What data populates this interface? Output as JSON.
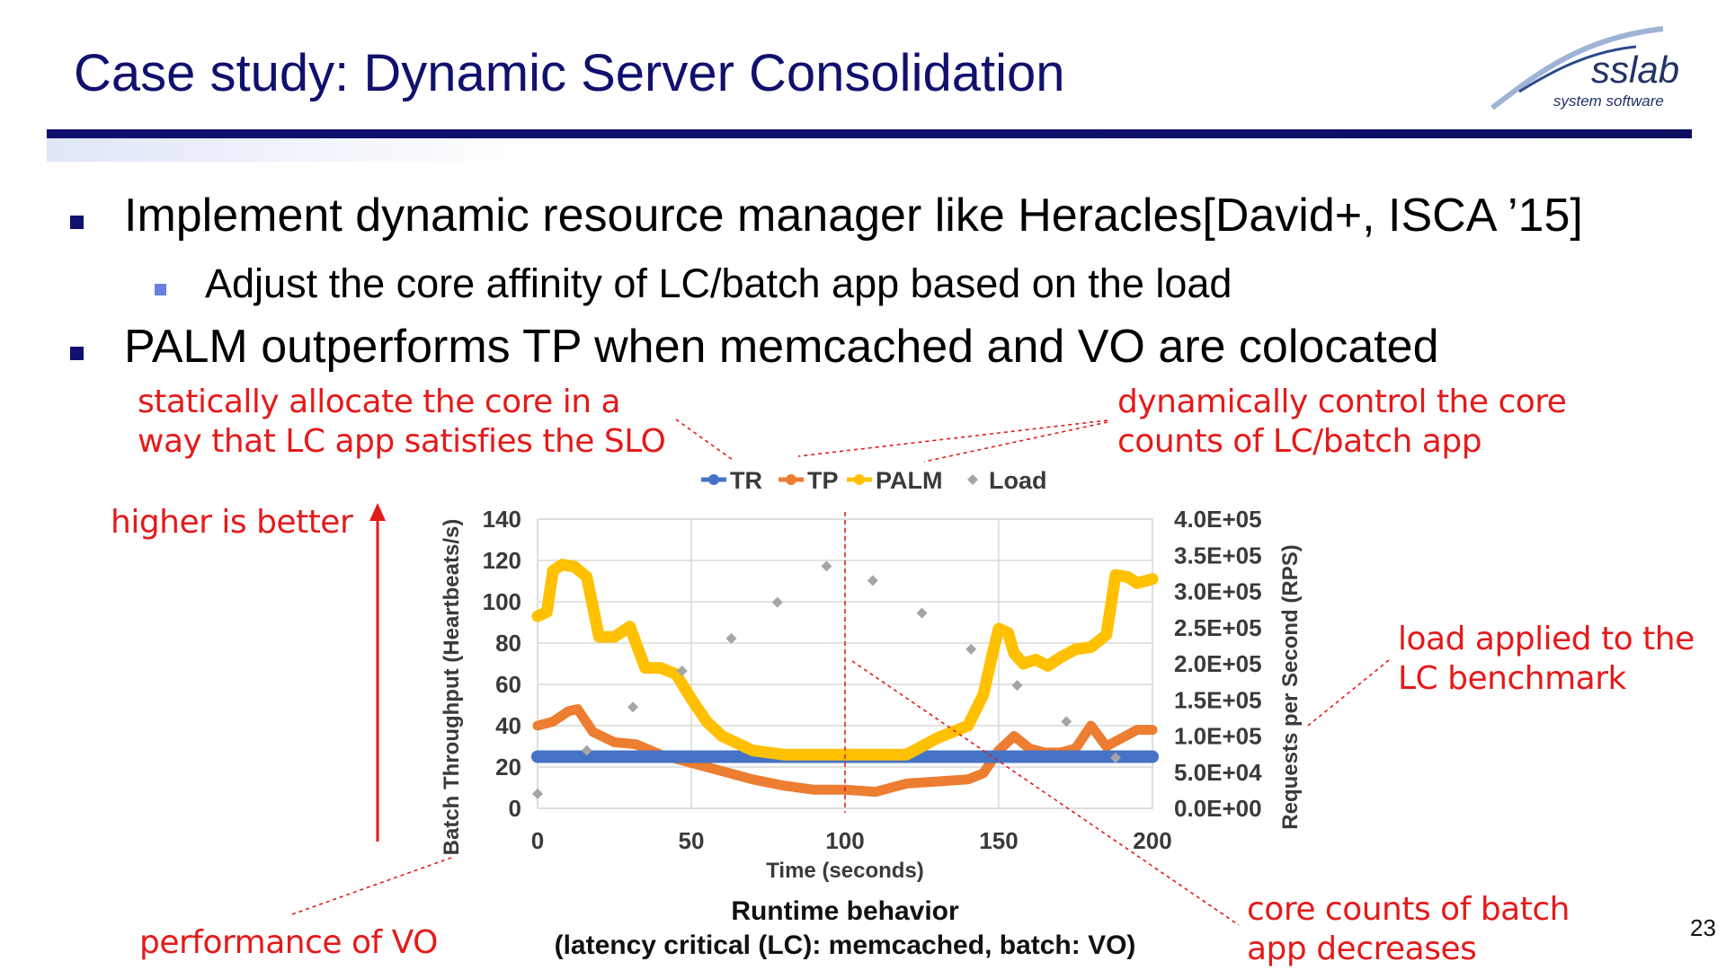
{
  "slide": {
    "title": "Case study: Dynamic Server Consolidation",
    "page_number": "23",
    "logo": {
      "name": "sslab",
      "subtitle": "system software"
    }
  },
  "bullets": [
    {
      "text": "Implement dynamic resource manager like Heracles[David+, ISCA ’15]"
    },
    {
      "text": "Adjust the core affinity of LC/batch app based on the load"
    },
    {
      "text": "PALM outperforms TP when memcached and VO are colocated"
    }
  ],
  "annotations": {
    "static_alloc": [
      "statically allocate the core in a",
      "way that LC app satisfies the SLO"
    ],
    "dynamic_control": [
      "dynamically control the core",
      "counts of LC/batch app"
    ],
    "higher_better": "higher is better",
    "load_applied": [
      "load applied to the",
      "LC benchmark"
    ],
    "perf_vo": "performance of VO",
    "core_decrease": [
      "core counts of batch",
      "app decreases"
    ]
  },
  "caption": {
    "line1": "Runtime behavior",
    "line2": "(latency critical (LC): memcached, batch: VO)"
  },
  "colors": {
    "title": "#10106e",
    "annotation": "#e41a1a",
    "TR": "#4472c4",
    "TP": "#ed7d31",
    "PALM": "#ffc000",
    "Load": "#a5a5a5"
  },
  "chart_data": {
    "type": "line",
    "xlabel": "Time (seconds)",
    "ylabel": "Batch Throughput (Heartbeats/s)",
    "y2label": "Requests per Second (RPS)",
    "xlim": [
      0,
      200
    ],
    "ylim": [
      0,
      140
    ],
    "y2lim": [
      0,
      400000
    ],
    "xticks": [
      "0",
      "50",
      "100",
      "150",
      "200"
    ],
    "yticks": [
      "0",
      "20",
      "40",
      "60",
      "80",
      "100",
      "120",
      "140"
    ],
    "y2ticks": [
      "0.0E+00",
      "5.0E+04",
      "1.0E+05",
      "1.5E+05",
      "2.0E+05",
      "2.5E+05",
      "3.0E+05",
      "3.5E+05",
      "4.0E+05"
    ],
    "legend_position": "top",
    "grid": true,
    "series": [
      {
        "name": "TR",
        "axis": "left",
        "x": [
          0,
          20,
          40,
          60,
          80,
          100,
          120,
          140,
          160,
          180,
          200
        ],
        "y": [
          25,
          25,
          25,
          25,
          25,
          25,
          25,
          25,
          25,
          25,
          25
        ]
      },
      {
        "name": "TP",
        "axis": "left",
        "x": [
          0,
          5,
          10,
          13,
          18,
          25,
          32,
          40,
          50,
          60,
          70,
          80,
          90,
          100,
          110,
          120,
          130,
          140,
          145,
          150,
          155,
          160,
          165,
          170,
          175,
          180,
          185,
          190,
          195,
          200
        ],
        "y": [
          40,
          42,
          47,
          48,
          37,
          32,
          31,
          26,
          22,
          18,
          14,
          11,
          9,
          9,
          8,
          12,
          13,
          14,
          17,
          28,
          35,
          29,
          27,
          27,
          29,
          40,
          30,
          34,
          38,
          38
        ]
      },
      {
        "name": "PALM",
        "axis": "left",
        "x": [
          0,
          3,
          5,
          8,
          12,
          16,
          20,
          25,
          30,
          35,
          40,
          45,
          50,
          55,
          60,
          70,
          80,
          90,
          100,
          110,
          120,
          125,
          130,
          140,
          145,
          148,
          150,
          153,
          155,
          158,
          162,
          166,
          170,
          175,
          180,
          185,
          188,
          192,
          195,
          200
        ],
        "y": [
          93,
          95,
          115,
          118,
          117,
          112,
          83,
          83,
          88,
          68,
          68,
          65,
          53,
          42,
          35,
          28,
          26,
          26,
          26,
          26,
          26,
          30,
          34,
          40,
          55,
          75,
          87,
          85,
          75,
          70,
          72,
          69,
          73,
          77,
          78,
          84,
          113,
          112,
          109,
          111
        ]
      },
      {
        "name": "Load",
        "axis": "right",
        "marker": "diamond",
        "x": [
          0,
          16,
          31,
          47,
          63,
          78,
          94,
          109,
          125,
          141,
          156,
          172,
          188
        ],
        "y": [
          20000,
          80000,
          140000,
          190000,
          235000,
          285000,
          335000,
          315000,
          270000,
          220000,
          170000,
          120000,
          70000
        ]
      }
    ],
    "markers": {
      "vertical_line_at_x": 100
    }
  }
}
